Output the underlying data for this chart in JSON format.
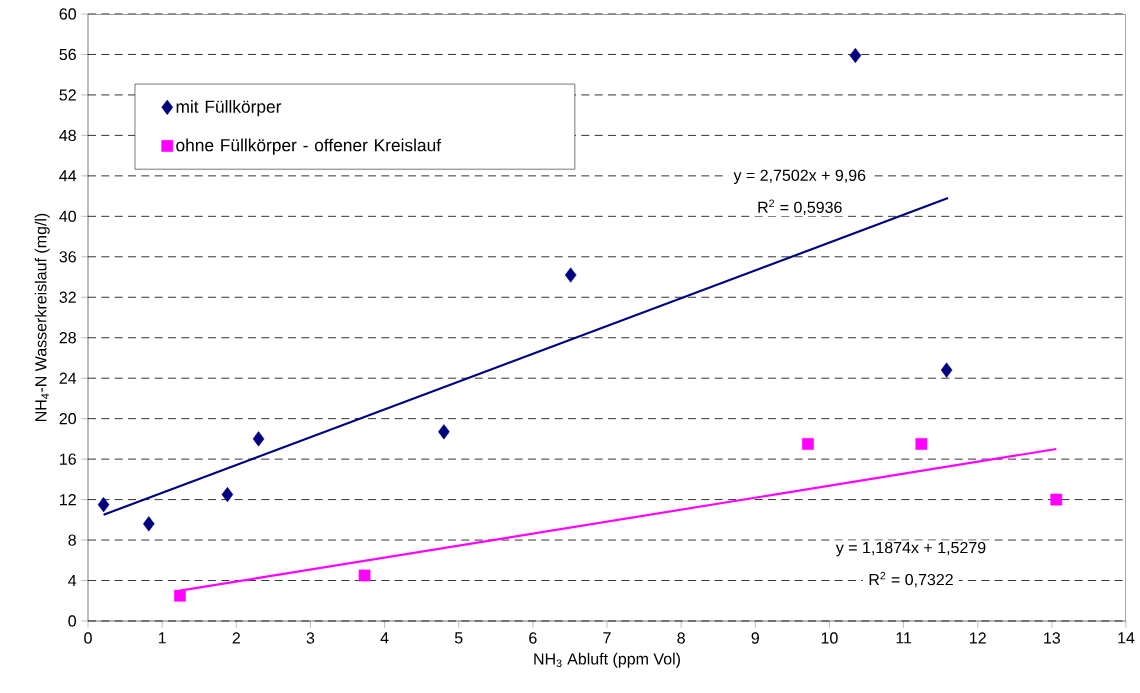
{
  "chart_data": {
    "type": "scatter",
    "xlabel": "NH$_{3}$ Abluft (ppm Vol)",
    "ylabel": "NH$_{4}$-N Wasserkreislauf (mg/l)",
    "xlim": [
      0,
      14
    ],
    "ylim": [
      0,
      60
    ],
    "xticks": [
      0,
      1,
      2,
      3,
      4,
      5,
      6,
      7,
      8,
      9,
      10,
      11,
      12,
      13,
      14
    ],
    "yticks": [
      0,
      4,
      8,
      12,
      16,
      20,
      24,
      28,
      32,
      36,
      40,
      44,
      48,
      52,
      56,
      60
    ],
    "grid": "y",
    "legend": "top left",
    "series": [
      {
        "name": "mit Füllkörper",
        "marker": "diamond",
        "color": "#000080",
        "x": [
          0.21,
          0.82,
          1.88,
          2.3,
          4.8,
          6.51,
          10.35,
          11.58
        ],
        "values": [
          11.5,
          9.6,
          12.5,
          18.0,
          18.7,
          34.2,
          55.9,
          24.8
        ]
      },
      {
        "name": "ohne Füllkörper - offener Kreislauf",
        "marker": "square",
        "color": "#ff00ff",
        "x": [
          1.24,
          3.73,
          9.71,
          11.24,
          13.06
        ],
        "values": [
          2.5,
          4.5,
          17.5,
          17.5,
          12.0
        ]
      },
      {
        "type": "line",
        "marker": "none",
        "line_style": "solid",
        "color": "#000080",
        "x": [
          0.21,
          11.6
        ],
        "values": [
          10.5,
          41.8
        ]
      },
      {
        "type": "line",
        "marker": "none",
        "line_style": "solid",
        "color": "#ff00ff",
        "x": [
          1.24,
          13.06
        ],
        "values": [
          3.0,
          17.0
        ]
      }
    ],
    "annotations": [
      "y = 2,7502x + 9,96",
      "R$^{2}$ = 0,5936",
      "y = 1,1874x + 1,5279",
      "R$^{2}$ = 0,7322"
    ]
  }
}
